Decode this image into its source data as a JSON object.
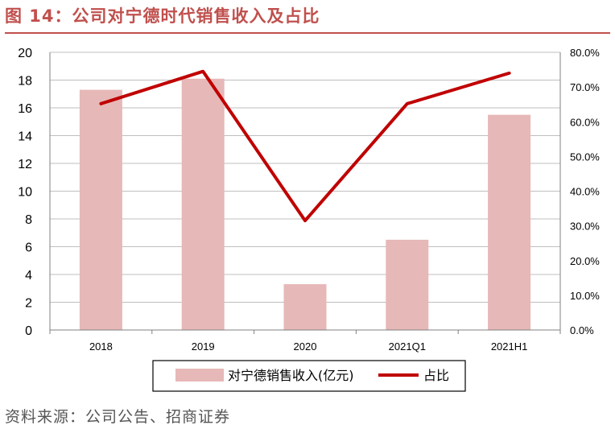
{
  "header": {
    "title": "图 14：公司对宁德时代销售收入及占比"
  },
  "footer": {
    "source": "资料来源：公司公告、招商证券"
  },
  "chart_data": {
    "type": "bar",
    "categories": [
      "2018",
      "2019",
      "2020",
      "2021Q1",
      "2021H1"
    ],
    "series": [
      {
        "name": "对宁德销售收入(亿元)",
        "type": "bar",
        "axis": "left",
        "color": "#e6b8b7",
        "values": [
          17.3,
          18.1,
          3.3,
          6.5,
          15.5
        ]
      },
      {
        "name": "占比",
        "type": "line",
        "axis": "right",
        "color": "#c00000",
        "values": [
          65.2,
          74.5,
          31.5,
          65.2,
          74.0
        ]
      }
    ],
    "y_left": {
      "range": [
        0,
        20
      ],
      "ticks": [
        "0",
        "2",
        "4",
        "6",
        "8",
        "10",
        "12",
        "14",
        "16",
        "18",
        "20"
      ]
    },
    "y_right": {
      "range": [
        0,
        80
      ],
      "ticks": [
        "0.0%",
        "10.0%",
        "20.0%",
        "30.0%",
        "40.0%",
        "50.0%",
        "60.0%",
        "70.0%",
        "80.0%"
      ]
    },
    "grid": true,
    "legend_position": "bottom"
  }
}
